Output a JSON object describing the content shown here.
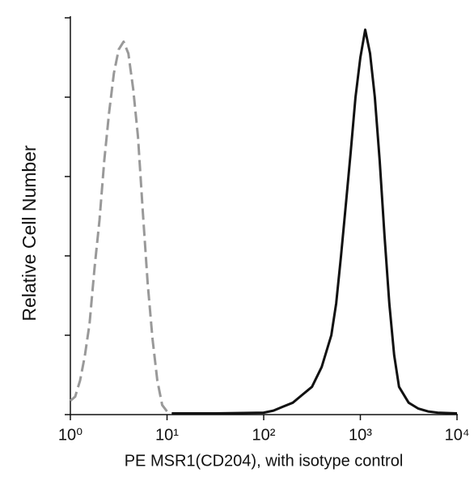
{
  "chart_data": {
    "type": "line",
    "x_label": "PE  MSR1(CD204),  with isotype control",
    "y_label": "Relative Cell Number",
    "xlog": true,
    "xlim": [
      1,
      10000
    ],
    "xticks": [
      {
        "value": 1,
        "label": "10⁰"
      },
      {
        "value": 10,
        "label": "10¹"
      },
      {
        "value": 100,
        "label": "10²"
      },
      {
        "value": 1000,
        "label": "10³"
      },
      {
        "value": 10000,
        "label": "10⁴"
      }
    ],
    "ylim": [
      0,
      100
    ],
    "yticks": [
      0,
      20,
      40,
      60,
      80,
      100
    ],
    "series": [
      {
        "color": "#999999",
        "dashed": true,
        "x": [
          1,
          1.12,
          1.26,
          1.41,
          1.58,
          1.78,
          2.0,
          2.24,
          2.51,
          2.82,
          3.16,
          3.55,
          3.98,
          4.47,
          5.01,
          5.62,
          6.31,
          7.08,
          7.94,
          8.91,
          10,
          11.2
        ],
        "values": [
          3.5,
          4.5,
          8.6,
          14.7,
          22.9,
          37,
          49,
          64,
          76,
          86,
          92,
          94,
          91,
          82,
          70,
          51,
          33,
          19,
          8.6,
          2.4,
          0.8,
          0.3
        ]
      },
      {
        "color": "#111111",
        "dashed": false,
        "x": [
          11.2,
          31.6,
          100,
          126,
          158,
          200,
          251,
          316,
          398,
          501,
          562,
          631,
          708,
          794,
          891,
          1000,
          1122,
          1259,
          1413,
          1585,
          1778,
          1995,
          2239,
          2512,
          3162,
          3981,
          5012,
          6310,
          10000
        ],
        "values": [
          0.3,
          0.3,
          0.5,
          1,
          2,
          3,
          5,
          7,
          12,
          20,
          28,
          40,
          53,
          66,
          80,
          90,
          97,
          91,
          80,
          64,
          45,
          28,
          15,
          7,
          3,
          1.5,
          0.8,
          0.5,
          0.3
        ]
      }
    ]
  }
}
